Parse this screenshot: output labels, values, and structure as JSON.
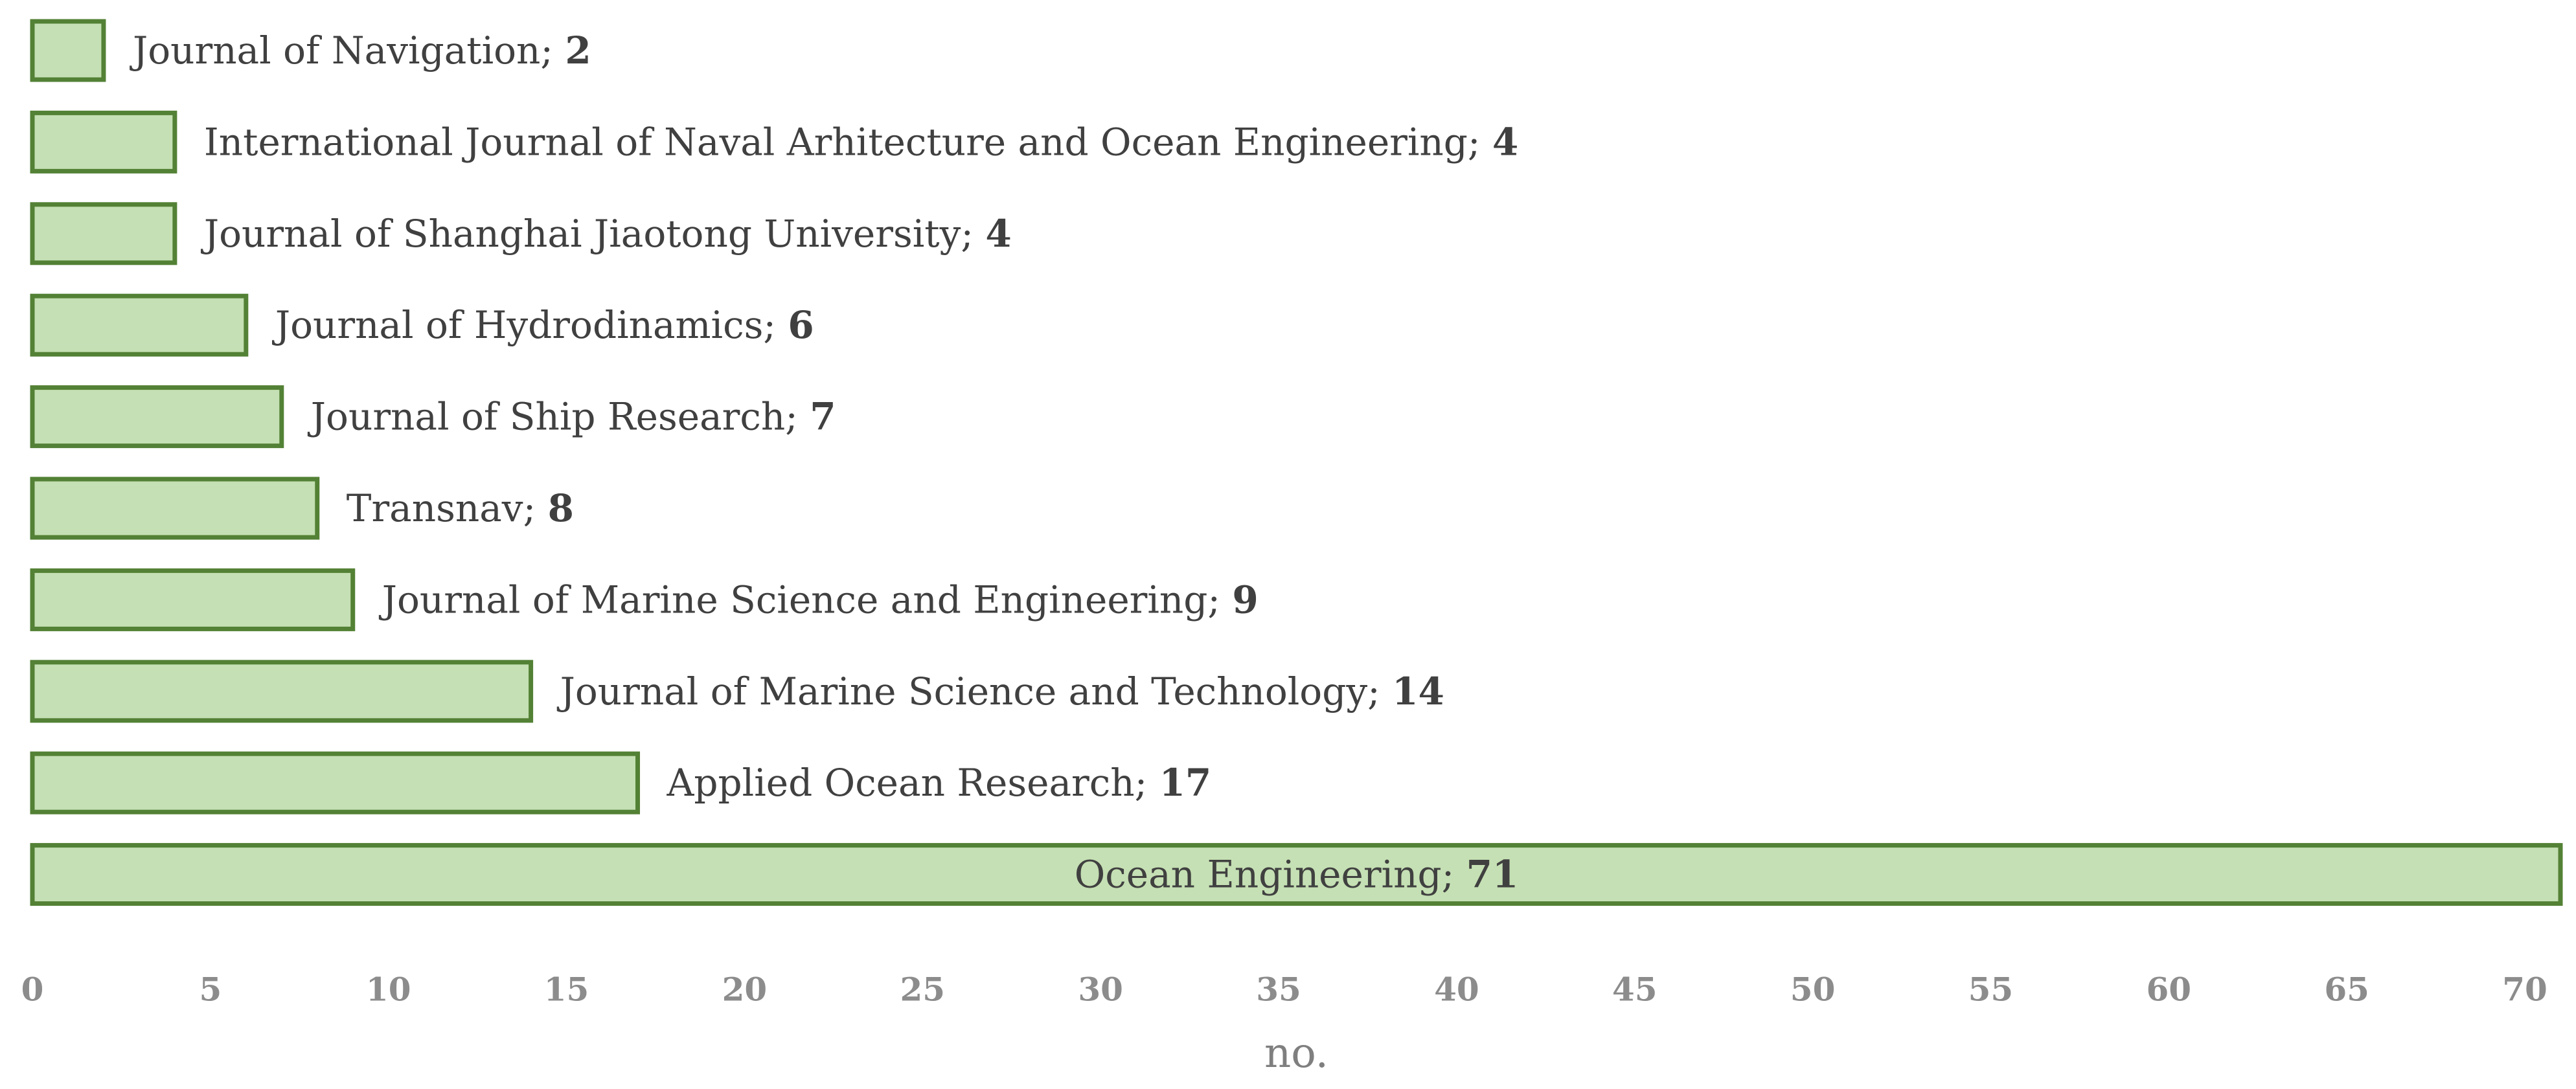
{
  "chart_data": {
    "type": "bar",
    "orientation": "horizontal",
    "categories": [
      "Journal of Navigation",
      "International Journal of Naval Arhitecture and Ocean Engineering",
      "Journal of Shanghai Jiaotong University",
      "Journal of Hydrodinamics",
      "Journal of Ship Research",
      "Transnav",
      "Journal of Marine Science and Engineering",
      "Journal of Marine Science and Technology",
      "Applied Ocean Research",
      "Ocean Engineering"
    ],
    "values": [
      2,
      4,
      4,
      6,
      7,
      8,
      9,
      14,
      17,
      71
    ],
    "label_separator": "; ",
    "title": "",
    "xlabel": "no.",
    "ylabel": "",
    "xlim": [
      0,
      71
    ],
    "x_ticks": [
      0,
      5,
      10,
      15,
      20,
      25,
      30,
      35,
      40,
      45,
      50,
      55,
      60,
      65,
      70
    ],
    "grid": false,
    "legend": "none",
    "colors": {
      "bar_fill": "#c5e0b4",
      "bar_stroke": "#538135",
      "label_text": "#404040",
      "tick_text": "#8c8c8c"
    }
  }
}
